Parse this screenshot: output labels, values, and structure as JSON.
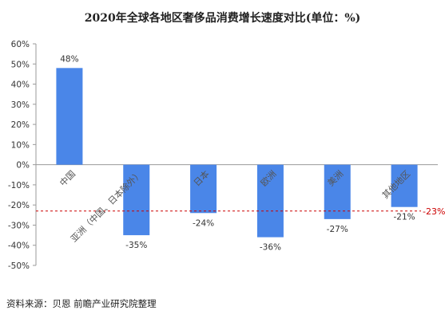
{
  "chart_data": {
    "type": "bar",
    "title": "2020年全球各地区奢侈品消费增长速度对比(单位：%)",
    "categories": [
      "中国",
      "亚洲（中国、日本除外）",
      "日本",
      "欧洲",
      "美洲",
      "其他地区"
    ],
    "values": [
      48,
      -35,
      -24,
      -36,
      -27,
      -21
    ],
    "data_labels": [
      "48%",
      "-35%",
      "-24%",
      "-36%",
      "-27%",
      "-21%"
    ],
    "y_ticks": [
      "60%",
      "50%",
      "40%",
      "30%",
      "20%",
      "10%",
      "0%",
      "-10%",
      "-20%",
      "-30%",
      "-40%",
      "-50%"
    ],
    "ylim": [
      -50,
      60
    ],
    "reference_line": {
      "value": -23,
      "label": "-23%",
      "color": "#cc0000"
    },
    "bar_color": "#4a86e8",
    "grid": false,
    "xlabel": "",
    "ylabel": ""
  },
  "source": "资料来源：贝恩 前瞻产业研究院整理"
}
